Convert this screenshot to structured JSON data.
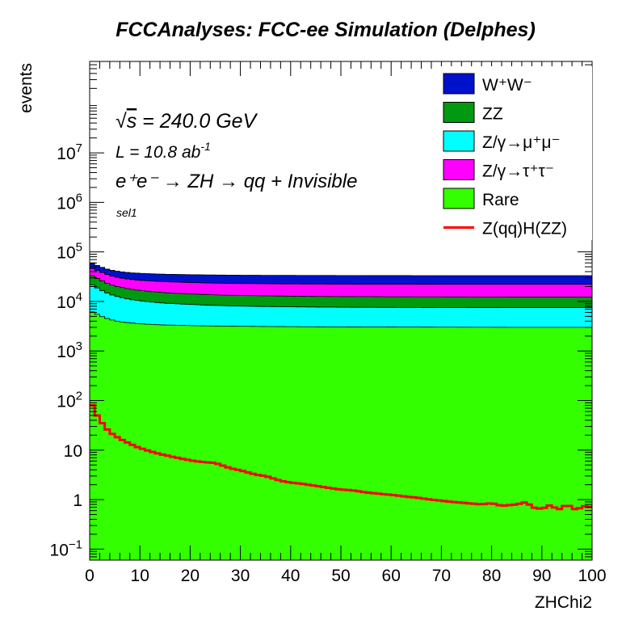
{
  "chart_data": {
    "type": "area",
    "title": "FCCAnalyses: FCC-ee Simulation (Delphes)",
    "xlabel": "ZHChi2",
    "ylabel": "events",
    "xlim": [
      0,
      100
    ],
    "ylim": [
      0.06,
      700000000
    ],
    "log_y": true,
    "x_ticks": [
      "0",
      "10",
      "20",
      "30",
      "40",
      "50",
      "60",
      "70",
      "80",
      "90",
      "100"
    ],
    "y_ticks": [
      {
        "value": 0.1,
        "base": "10",
        "exp": "−1"
      },
      {
        "value": 1,
        "label": "1"
      },
      {
        "value": 10,
        "label": "10"
      },
      {
        "value": 100,
        "base": "10",
        "exp": "2"
      },
      {
        "value": 1000,
        "base": "10",
        "exp": "3"
      },
      {
        "value": 10000,
        "base": "10",
        "exp": "4"
      },
      {
        "value": 100000,
        "base": "10",
        "exp": "5"
      },
      {
        "value": 1000000,
        "base": "10",
        "exp": "6"
      },
      {
        "value": 10000000,
        "base": "10",
        "exp": "7"
      }
    ],
    "annotations": {
      "sqrt_s": {
        "sym": "√",
        "s": "s",
        "rest": " = 240.0 GeV"
      },
      "lumi": {
        "pre": "L = 10.8 ab",
        "sup": "-1"
      },
      "process": "e⁺e⁻ → ZH → qq + Invisible",
      "selection": "sel1"
    },
    "x": [
      0,
      1,
      2,
      3,
      4,
      5,
      6,
      8,
      10,
      12,
      15,
      18,
      20,
      25,
      30,
      35,
      40,
      45,
      50,
      55,
      60,
      65,
      70,
      75,
      80,
      85,
      90,
      95,
      100
    ],
    "stacked_series": [
      {
        "name": "Rare",
        "color": "#33ff00",
        "cumulative": [
          6500,
          5800,
          5200,
          4700,
          4350,
          4100,
          3900,
          3700,
          3550,
          3450,
          3350,
          3300,
          3250,
          3200,
          3150,
          3120,
          3100,
          3080,
          3070,
          3060,
          3050,
          3040,
          3030,
          3020,
          3010,
          3000,
          3000,
          3000,
          3000
        ]
      },
      {
        "name": "Z/γ→μ⁺μ⁻",
        "color": "#00ffff",
        "cumulative": [
          23000,
          20000,
          17500,
          15500,
          14000,
          13000,
          12200,
          11000,
          10300,
          9800,
          9200,
          8900,
          8700,
          8300,
          8050,
          7900,
          7800,
          7700,
          7650,
          7600,
          7580,
          7560,
          7540,
          7520,
          7510,
          7500,
          7500,
          7500,
          7500
        ]
      },
      {
        "name": "ZZ",
        "color": "#00990f",
        "cumulative": [
          35000,
          31000,
          27500,
          24500,
          22200,
          20600,
          19500,
          17800,
          16700,
          15900,
          15000,
          14500,
          14200,
          13600,
          13200,
          13000,
          12800,
          12650,
          12550,
          12500,
          12450,
          12400,
          12380,
          12350,
          12330,
          12300,
          12300,
          12300,
          12300
        ]
      },
      {
        "name": "Z/γ→τ⁺τ⁻",
        "color": "#ff00ff",
        "cumulative": [
          48000,
          44000,
          40000,
          36500,
          33500,
          31500,
          30000,
          28000,
          26800,
          25900,
          25000,
          24500,
          24100,
          23400,
          23000,
          22800,
          22600,
          22500,
          22400,
          22300,
          22300,
          22250,
          22200,
          22200,
          22200,
          22200,
          22200,
          22200,
          22200
        ]
      },
      {
        "name": "W⁺W⁻",
        "color": "#0011cc",
        "cumulative": [
          62000,
          56000,
          51000,
          46500,
          43500,
          41500,
          40000,
          38000,
          37000,
          36200,
          35400,
          35000,
          34700,
          34200,
          33900,
          33700,
          33600,
          33500,
          33400,
          33300,
          33300,
          33250,
          33200,
          33200,
          33200,
          33200,
          33200,
          33200,
          33200
        ]
      }
    ],
    "signal": {
      "name": "Z(qq)H(ZZ)",
      "color": "#ff0000",
      "x": [
        0,
        0.5,
        1,
        1.5,
        2,
        2.5,
        3,
        3.5,
        4,
        5,
        6,
        7,
        8,
        9,
        10,
        12,
        14,
        16,
        18,
        20,
        22,
        25,
        28,
        30,
        33,
        35,
        38,
        40,
        42,
        45,
        48,
        50,
        52,
        55,
        58,
        60,
        63,
        65,
        68,
        70,
        72,
        75,
        78,
        80,
        82,
        85,
        87,
        88,
        90,
        92,
        93,
        95,
        97,
        98,
        100
      ],
      "y": [
        100,
        80,
        62,
        50,
        42,
        35,
        30,
        26,
        23,
        19.5,
        17,
        15,
        13.5,
        12,
        11,
        9.5,
        8.3,
        7.5,
        6.8,
        6.2,
        5.8,
        5.5,
        4.3,
        3.9,
        3.2,
        3.0,
        2.4,
        2.2,
        2.1,
        1.9,
        1.7,
        1.6,
        1.55,
        1.4,
        1.3,
        1.25,
        1.15,
        1.1,
        1.0,
        0.95,
        0.9,
        0.85,
        0.8,
        0.85,
        0.75,
        0.8,
        0.9,
        0.7,
        0.65,
        0.8,
        0.6,
        0.8,
        0.6,
        0.75,
        0.7
      ]
    },
    "legend": {
      "placement": "top-right",
      "entries": [
        {
          "label": "W⁺W⁻",
          "kind": "box",
          "color": "#0011cc"
        },
        {
          "label": "ZZ",
          "kind": "box",
          "color": "#00990f"
        },
        {
          "label": "Z/γ→μ⁺μ⁻",
          "kind": "box",
          "color": "#00ffff"
        },
        {
          "label": "Z/γ→τ⁺τ⁻",
          "kind": "box",
          "color": "#ff00ff"
        },
        {
          "label": "Rare",
          "kind": "box",
          "color": "#33ff00"
        },
        {
          "label": "Z(qq)H(ZZ)",
          "kind": "line",
          "color": "#ff0000"
        }
      ]
    }
  }
}
